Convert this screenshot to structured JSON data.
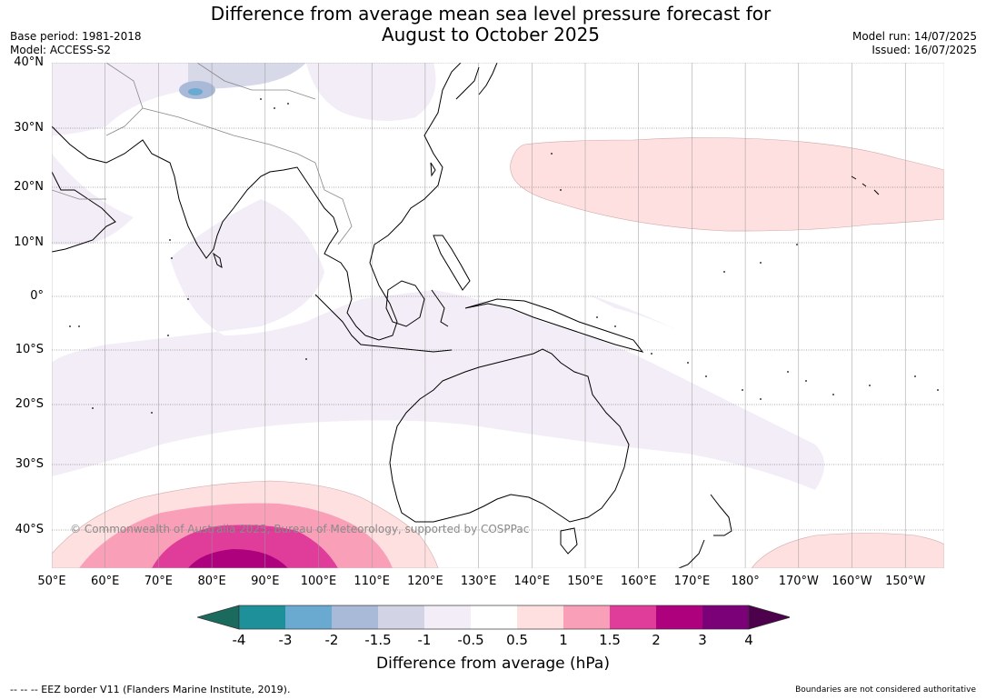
{
  "title_line1": "Difference from average mean sea level pressure forecast for",
  "title_line2": "August to October 2025",
  "base_period": "Base period: 1981-2018",
  "model": "Model: ACCESS-S2",
  "model_run": "Model run: 14/07/2025",
  "issued": "Issued: 16/07/2025",
  "latitude_labels": [
    "40°N",
    "30°N",
    "20°N",
    "10°N",
    "0°",
    "10°S",
    "20°S",
    "30°S",
    "40°S"
  ],
  "longitude_labels": [
    "50°E",
    "60°E",
    "70°E",
    "80°E",
    "90°E",
    "100°E",
    "110°E",
    "120°E",
    "130°E",
    "140°E",
    "150°E",
    "160°E",
    "170°E",
    "180°",
    "170°W",
    "160°W",
    "150°W"
  ],
  "copyright": "© Commonwealth of Australia 2025, Bureau of Meteorology, supported by COSPPac",
  "colorbar": {
    "levels": [
      "-4",
      "-3",
      "-2",
      "-1.5",
      "-1",
      "-0.5",
      "0.5",
      "1",
      "1.5",
      "2",
      "3",
      "4"
    ],
    "colors": [
      "#1a6b5e",
      "#1e9099",
      "#6aa9d0",
      "#a9b9d8",
      "#d2d3e4",
      "#f2edf6",
      "#ffffff",
      "#fde0df",
      "#f9a0b8",
      "#e03c99",
      "#ae017e",
      "#7a0177",
      "#4d004b"
    ],
    "label": "Difference from average (hPa)"
  },
  "footer_left": "--  --  -- EEZ border V11 (Flanders Marine Institute, 2019).",
  "footer_right": "Boundaries are not considered authoritative"
}
